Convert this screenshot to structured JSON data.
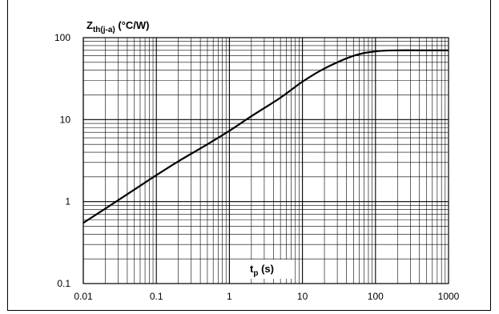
{
  "chart_data": {
    "type": "line",
    "title": "",
    "ylabel": {
      "main": "Z",
      "sub": "th(j-a)",
      "unit": " (°C/W)"
    },
    "xlabel": {
      "main": "t",
      "sub": "p",
      "unit": " (s)"
    },
    "xscale": "log",
    "yscale": "log",
    "xlim": [
      0.01,
      1000
    ],
    "ylim": [
      0.1,
      100
    ],
    "xticks": [
      0.01,
      0.1,
      1,
      10,
      100,
      1000
    ],
    "xtick_labels": [
      "0.01",
      "0.1",
      "1",
      "10",
      "100",
      "1000"
    ],
    "yticks": [
      0.1,
      1,
      10,
      100
    ],
    "ytick_labels": [
      "0.1",
      "1",
      "10",
      "100"
    ],
    "grid": true,
    "series": [
      {
        "color": "#000000",
        "x": [
          0.01,
          0.02,
          0.05,
          0.1,
          0.2,
          0.5,
          1,
          2,
          5,
          10,
          20,
          50,
          100,
          200,
          500,
          1000
        ],
        "y": [
          0.55,
          0.82,
          1.4,
          2.1,
          3.1,
          5.0,
          7.3,
          11.0,
          18.5,
          29,
          42,
          60,
          68,
          70,
          70,
          70
        ]
      }
    ]
  }
}
